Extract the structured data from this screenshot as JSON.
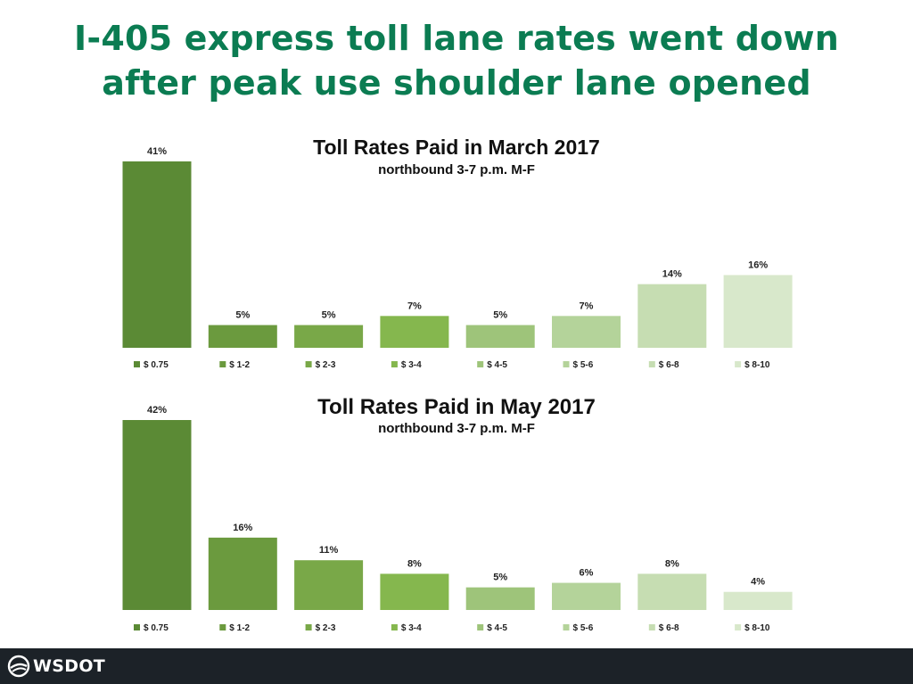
{
  "slide": {
    "title_line1": "I-405 express toll lane rates went down",
    "title_line2": "after peak use shoulder lane opened",
    "accent_color": "#0b7c52"
  },
  "footer": {
    "logo_text": "WSDOT",
    "logo_icon": "wsdot-swoosh-icon",
    "background": "#1c2228"
  },
  "chart_data": [
    {
      "type": "bar",
      "title": "Toll Rates Paid in March 2017",
      "subtitle": "northbound 3-7 p.m. M-F",
      "categories": [
        "$ 0.75",
        "$ 1-2",
        "$ 2-3",
        "$ 3-4",
        "$ 4-5",
        "$ 5-6",
        "$ 6-8",
        "$ 8-10"
      ],
      "values": [
        41,
        5,
        5,
        7,
        5,
        7,
        14,
        16
      ],
      "labels": [
        "41%",
        "5%",
        "5%",
        "7%",
        "5%",
        "7%",
        "14%",
        "16%"
      ],
      "colors": [
        "#5b8a35",
        "#6b9a3e",
        "#79a848",
        "#85b74e",
        "#9ec47a",
        "#b4d39a",
        "#c6ddb2",
        "#d8e8cb"
      ],
      "unit": "%",
      "ylim": [
        0,
        41
      ],
      "grid": false,
      "legend_position": "bottom"
    },
    {
      "type": "bar",
      "title": "Toll Rates Paid in May 2017",
      "subtitle": "northbound 3-7 p.m. M-F",
      "categories": [
        "$ 0.75",
        "$ 1-2",
        "$ 2-3",
        "$ 3-4",
        "$ 4-5",
        "$ 5-6",
        "$ 6-8",
        "$ 8-10"
      ],
      "values": [
        42,
        16,
        11,
        8,
        5,
        6,
        8,
        4
      ],
      "labels": [
        "42%",
        "16%",
        "11%",
        "8%",
        "5%",
        "6%",
        "8%",
        "4%"
      ],
      "colors": [
        "#5b8a35",
        "#6b9a3e",
        "#79a848",
        "#85b74e",
        "#9ec47a",
        "#b4d39a",
        "#c6ddb2",
        "#d8e8cb"
      ],
      "unit": "%",
      "ylim": [
        0,
        42
      ],
      "grid": false,
      "legend_position": "bottom"
    }
  ]
}
